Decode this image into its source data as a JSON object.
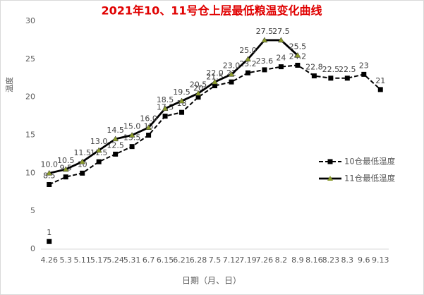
{
  "chart_data": {
    "type": "line",
    "title": "2021年10、11号仓上层最低粮温变化曲线",
    "x_label": "日期（月、日）",
    "y_label": "温度",
    "categories": [
      "4.26",
      "5.3",
      "5.11",
      "5.17",
      "5.24",
      "5.31",
      "6.7",
      "6.15",
      "6.21",
      "6.28",
      "7.5",
      "7.12",
      "7.19",
      "7.26",
      "8.2",
      "8.9",
      "8.16",
      "8.23",
      "8.3",
      "9.6",
      "9.13"
    ],
    "ylim": [
      0,
      30
    ],
    "yticks": [
      0,
      5,
      10,
      15,
      20,
      25,
      30
    ],
    "legend": "right",
    "series": [
      {
        "name": "10仓最低温度",
        "color": "#000000",
        "dash": true,
        "marker": "square",
        "values": [
          8.5,
          9.5,
          10,
          11.5,
          12.5,
          13.5,
          15,
          17.5,
          18,
          20,
          21.5,
          22,
          23.2,
          23.6,
          24,
          24.2,
          22.8,
          22.5,
          22.5,
          23,
          21
        ]
      },
      {
        "name": "11仓最低温度",
        "color": "#000000",
        "marker_color": "#8a9a2a",
        "dash": false,
        "marker": "triangle",
        "values": [
          10,
          10.5,
          11.5,
          13,
          14.5,
          15,
          16,
          18.5,
          19.5,
          20.5,
          22,
          23,
          25,
          27.5,
          27.5,
          25.5,
          null,
          null,
          null,
          null,
          null
        ],
        "value_labels": [
          "10.0",
          "10.5",
          "11.5",
          "13.0",
          "14.5",
          "15.0",
          "16.0",
          "18.5",
          "19.5",
          "20.5",
          "22.0",
          "23.0",
          "25.0",
          "27.5",
          "27.5",
          "25.5",
          null,
          null,
          null,
          null,
          null
        ]
      },
      {
        "color": "#000000",
        "marker": "square",
        "values": [
          1,
          null,
          null,
          null,
          null,
          null,
          null,
          null,
          null,
          null,
          null,
          null,
          null,
          null,
          null,
          null,
          null,
          null,
          null,
          null,
          null
        ]
      }
    ]
  }
}
